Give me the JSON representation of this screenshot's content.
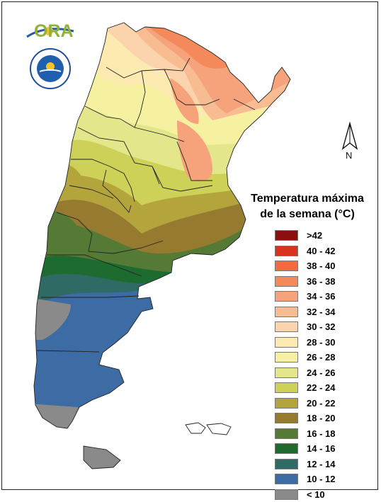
{
  "logo": {
    "name": "ORA"
  },
  "north_label": "N",
  "legend": {
    "title_line1": "Temperatura máxima",
    "title_line2": "de la semana (°C)",
    "items": [
      {
        "label": ">42",
        "color": "#8b0f0f"
      },
      {
        "label": "40 - 42",
        "color": "#d9331f"
      },
      {
        "label": "38 - 40",
        "color": "#f26a3e"
      },
      {
        "label": "36 - 38",
        "color": "#f48a5b"
      },
      {
        "label": "34 - 36",
        "color": "#f6a27a"
      },
      {
        "label": "32 - 34",
        "color": "#f8bc93"
      },
      {
        "label": "30 - 32",
        "color": "#fbd4ad"
      },
      {
        "label": "28 - 30",
        "color": "#fdeab0"
      },
      {
        "label": "26 - 28",
        "color": "#f6f1a0"
      },
      {
        "label": "24 - 26",
        "color": "#e3e68b"
      },
      {
        "label": "22 - 24",
        "color": "#cdd157"
      },
      {
        "label": "20 - 22",
        "color": "#b3a43c"
      },
      {
        "label": "18 - 20",
        "color": "#957a30"
      },
      {
        "label": "16 - 18",
        "color": "#557a35"
      },
      {
        "label": "14 - 16",
        "color": "#1d6b2f"
      },
      {
        "label": "12 - 14",
        "color": "#2f6a64"
      },
      {
        "label": "10 - 12",
        "color": "#3d6ba3"
      },
      {
        "label": "< 10",
        "color": "#8a8a8a"
      }
    ]
  }
}
